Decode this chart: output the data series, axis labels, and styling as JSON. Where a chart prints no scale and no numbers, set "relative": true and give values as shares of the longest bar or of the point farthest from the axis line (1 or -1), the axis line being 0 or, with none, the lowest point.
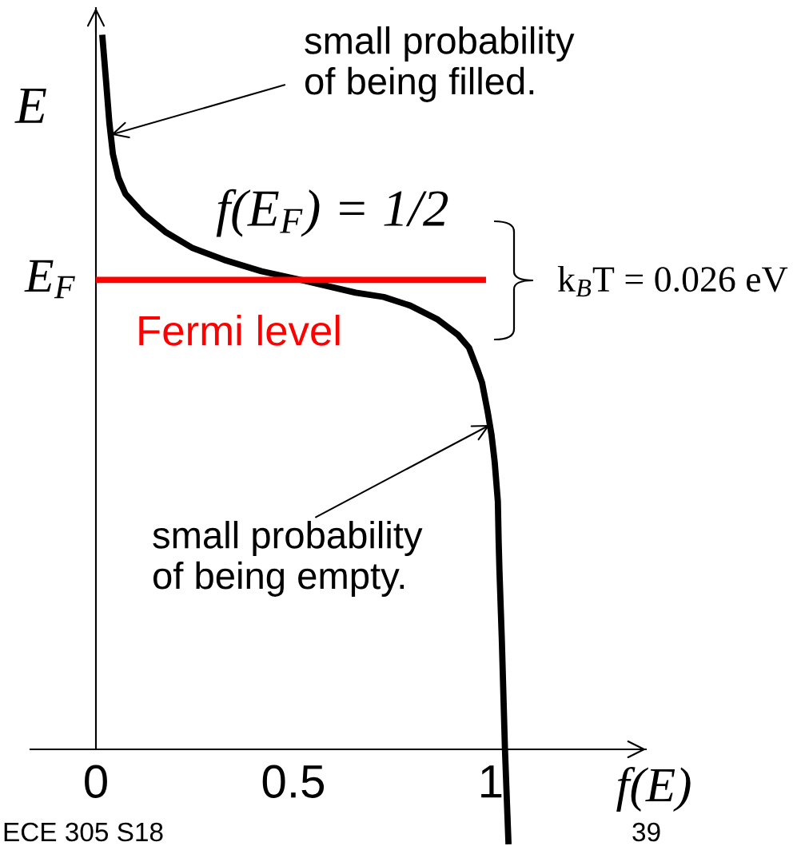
{
  "chart_data": {
    "type": "line",
    "xlabel": "f(E)",
    "ylabel": "E",
    "relative": true,
    "xlim": [
      -0.166,
      1.393
    ],
    "xticks": [
      0,
      0.5,
      1
    ],
    "series": [
      {
        "color": "#000000",
        "x": [
          0.016,
          0.026,
          0.034,
          0.043,
          0.057,
          0.075,
          0.121,
          0.176,
          0.243,
          0.324,
          0.419,
          0.518,
          0.658,
          0.729,
          0.796,
          0.864,
          0.917,
          0.945,
          0.966,
          0.978,
          0.992,
          1.002,
          1.01,
          1.018,
          1.02,
          1.022,
          1.028,
          1.036,
          1.045
        ],
        "values": [
          1.0,
          0.933,
          0.877,
          0.833,
          0.8,
          0.777,
          0.749,
          0.724,
          0.702,
          0.685,
          0.669,
          0.657,
          0.639,
          0.633,
          0.621,
          0.602,
          0.58,
          0.562,
          0.532,
          0.513,
          0.473,
          0.44,
          0.402,
          0.347,
          0.291,
          0.251,
          0.154,
          0,
          -0.133
        ]
      },
      {
        "name": "Fermi level",
        "color": "#ff0000",
        "x": [
          0,
          0.988
        ],
        "values": [
          0.657,
          0.657
        ]
      }
    ],
    "annotations": [
      {
        "text": "small probability\nof being filled.",
        "x": 0.038,
        "y": 0.86
      },
      {
        "text": "small probability\nof being empty.",
        "x": 0.998,
        "y": 0.454
      },
      {
        "text": "E$_{F}$",
        "x": 0,
        "y": 0.657
      },
      "f(E$_{F}$) = 1/2",
      "k$_{B}$T = 0.026 eV",
      "ECE 305 S18",
      "39"
    ]
  }
}
